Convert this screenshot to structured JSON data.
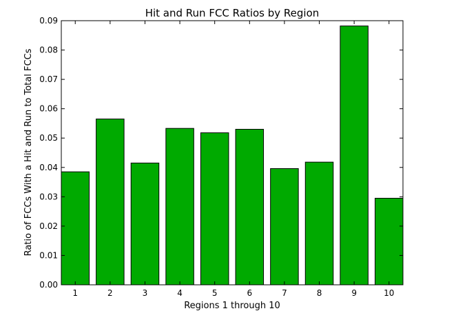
{
  "chart_data": {
    "type": "bar",
    "title": "Hit and Run FCC Ratios by Region",
    "xlabel": "Regions 1 through 10",
    "ylabel": "Ratio of FCCs With a Hit and Run to Total FCCs",
    "categories": [
      "1",
      "2",
      "3",
      "4",
      "5",
      "6",
      "7",
      "8",
      "9",
      "10"
    ],
    "values": [
      0.0385,
      0.0565,
      0.0415,
      0.0533,
      0.0518,
      0.053,
      0.0396,
      0.0418,
      0.0882,
      0.0295
    ],
    "ylim": [
      0,
      0.09
    ],
    "yticks": [
      "0.00",
      "0.01",
      "0.02",
      "0.03",
      "0.04",
      "0.05",
      "0.06",
      "0.07",
      "0.08",
      "0.09"
    ],
    "grid": false,
    "bar_color": "#00aa00"
  }
}
